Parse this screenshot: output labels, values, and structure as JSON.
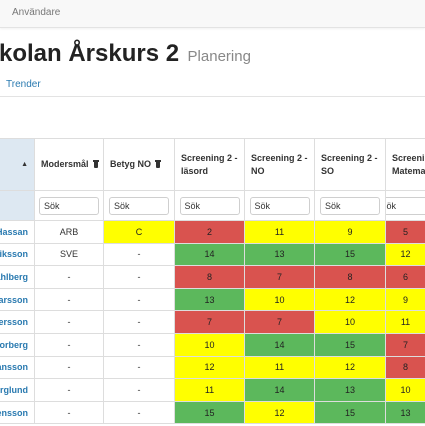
{
  "topbar": {
    "user_label": "Användare"
  },
  "page": {
    "title": "kolan Årskurs 2",
    "subtitle": "Planering",
    "tab_label": "Trender"
  },
  "colors": {
    "red": "#d9534f",
    "green": "#5cb85c",
    "yellow": "#ffff00",
    "link": "#2a7ab0"
  },
  "table": {
    "headers": [
      "",
      "Modersmål",
      "Betyg NO",
      "Screening 2 - läsord",
      "Screening 2 - NO",
      "Screening 2 - SO",
      "Screeni Matemat"
    ],
    "filter_placeholder": "Sök",
    "filter_values": [
      "",
      "Sök",
      "Sök",
      "Sök",
      "Sök",
      "Sök",
      "Sök"
    ],
    "rows": [
      {
        "name": "Hassan",
        "modersmal": "ARB",
        "betyg": "C",
        "scores": [
          "2",
          "11",
          "9",
          "5"
        ],
        "statuses": [
          "red",
          "yellow",
          "yellow",
          "red"
        ]
      },
      {
        "name": "riksson",
        "modersmal": "SVE",
        "betyg": "-",
        "scores": [
          "14",
          "13",
          "15",
          "12"
        ],
        "statuses": [
          "green",
          "green",
          "green",
          "yellow"
        ]
      },
      {
        "name": "ahlberg",
        "modersmal": "-",
        "betyg": "-",
        "scores": [
          "8",
          "7",
          "8",
          "6"
        ],
        "statuses": [
          "red",
          "red",
          "red",
          "red"
        ]
      },
      {
        "name": "arsson",
        "modersmal": "-",
        "betyg": "-",
        "scores": [
          "13",
          "10",
          "12",
          "9"
        ],
        "statuses": [
          "green",
          "yellow",
          "yellow",
          "yellow"
        ]
      },
      {
        "name": "Persson",
        "modersmal": "-",
        "betyg": "-",
        "scores": [
          "7",
          "7",
          "10",
          "11"
        ],
        "statuses": [
          "red",
          "red",
          "yellow",
          "yellow"
        ]
      },
      {
        "name": "Norberg",
        "modersmal": "-",
        "betyg": "-",
        "scores": [
          "10",
          "14",
          "15",
          "7"
        ],
        "statuses": [
          "yellow",
          "green",
          "green",
          "red"
        ]
      },
      {
        "name": "ansson",
        "modersmal": "-",
        "betyg": "-",
        "scores": [
          "12",
          "11",
          "12",
          "8"
        ],
        "statuses": [
          "yellow",
          "yellow",
          "yellow",
          "red"
        ]
      },
      {
        "name": "erglund",
        "modersmal": "-",
        "betyg": "-",
        "scores": [
          "11",
          "14",
          "13",
          "10"
        ],
        "statuses": [
          "yellow",
          "green",
          "green",
          "yellow"
        ]
      },
      {
        "name": "ensson",
        "modersmal": "-",
        "betyg": "-",
        "scores": [
          "15",
          "12",
          "15",
          "13"
        ],
        "statuses": [
          "green",
          "yellow",
          "green",
          "green"
        ]
      }
    ]
  }
}
